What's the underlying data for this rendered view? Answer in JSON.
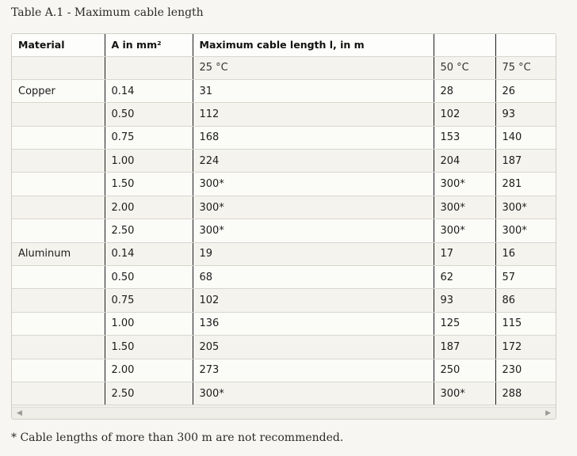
{
  "caption": "Table A.1 - Maximum cable length",
  "header": {
    "material": "Material",
    "area": "A in mm²",
    "max_length": "Maximum cable length l, in m",
    "empty1": "",
    "empty2": ""
  },
  "temps": {
    "t25": "25 °C",
    "t50": "50 °C",
    "t75": "75 °C"
  },
  "rows": [
    {
      "material": "Copper",
      "area": "0.14",
      "t25": "31",
      "t50": "28",
      "t75": "26"
    },
    {
      "material": "",
      "area": "0.50",
      "t25": "112",
      "t50": "102",
      "t75": "93"
    },
    {
      "material": "",
      "area": "0.75",
      "t25": "168",
      "t50": "153",
      "t75": "140"
    },
    {
      "material": "",
      "area": "1.00",
      "t25": "224",
      "t50": "204",
      "t75": "187"
    },
    {
      "material": "",
      "area": "1.50",
      "t25": "300*",
      "t50": "300*",
      "t75": "281"
    },
    {
      "material": "",
      "area": "2.00",
      "t25": "300*",
      "t50": "300*",
      "t75": "300*"
    },
    {
      "material": "",
      "area": "2.50",
      "t25": "300*",
      "t50": "300*",
      "t75": "300*"
    },
    {
      "material": "Aluminum",
      "area": "0.14",
      "t25": "19",
      "t50": "17",
      "t75": "16"
    },
    {
      "material": "",
      "area": "0.50",
      "t25": "68",
      "t50": "62",
      "t75": "57"
    },
    {
      "material": "",
      "area": "0.75",
      "t25": "102",
      "t50": "93",
      "t75": "86"
    },
    {
      "material": "",
      "area": "1.00",
      "t25": "136",
      "t50": "125",
      "t75": "115"
    },
    {
      "material": "",
      "area": "1.50",
      "t25": "205",
      "t50": "187",
      "t75": "172"
    },
    {
      "material": "",
      "area": "2.00",
      "t25": "273",
      "t50": "250",
      "t75": "230"
    },
    {
      "material": "",
      "area": "2.50",
      "t25": "300*",
      "t50": "300*",
      "t75": "288"
    }
  ],
  "scroll": {
    "left_icon": "scroll-left-arrow-icon",
    "right_icon": "scroll-right-arrow-icon"
  },
  "footnote": "* Cable lengths of more than 300 m are not recommended."
}
